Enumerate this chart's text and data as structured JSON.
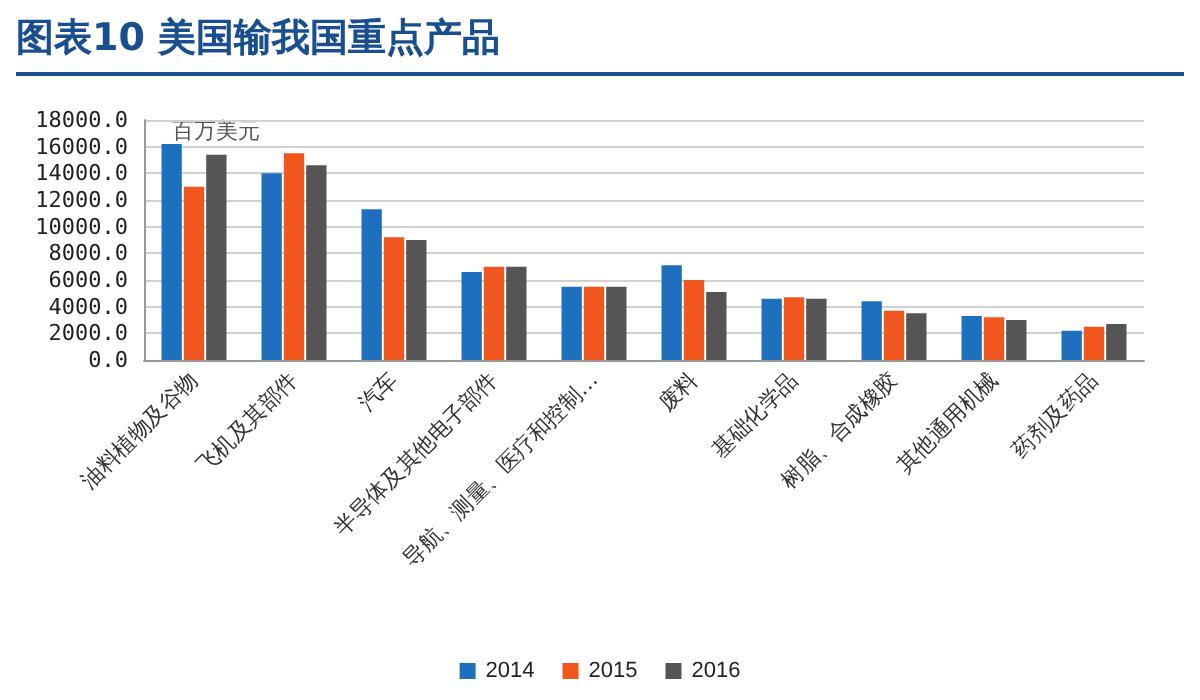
{
  "chart_data": {
    "type": "bar",
    "title": "图表10 美国输我国重点产品",
    "ylabel": "百万美元",
    "categories": [
      "油料植物及谷物",
      "飞机及其部件",
      "汽车",
      "半导体及其他电子部件",
      "导航、测量、医疗和控制…",
      "废料",
      "基础化学品",
      "树脂、合成橡胶",
      "其他通用机械",
      "药剂及药品"
    ],
    "series": [
      {
        "name": "2014",
        "color": "#1f6fbf",
        "values": [
          16200,
          14000,
          11300,
          6600,
          5500,
          7100,
          4600,
          4400,
          3300,
          2200
        ]
      },
      {
        "name": "2015",
        "color": "#f0561d",
        "values": [
          13000,
          15500,
          9200,
          7000,
          5500,
          6000,
          4700,
          3700,
          3200,
          2500
        ]
      },
      {
        "name": "2016",
        "color": "#555555",
        "values": [
          15400,
          14600,
          9000,
          7000,
          5500,
          5100,
          4600,
          3500,
          3000,
          2700
        ]
      }
    ],
    "ylim": [
      0,
      18000
    ],
    "yticks": [
      {
        "value": 0,
        "label": "0.0"
      },
      {
        "value": 2000,
        "label": "2000.0"
      },
      {
        "value": 4000,
        "label": "4000.0"
      },
      {
        "value": 6000,
        "label": "6000.0"
      },
      {
        "value": 8000,
        "label": "8000.0"
      },
      {
        "value": 10000,
        "label": "10000.0"
      },
      {
        "value": 12000,
        "label": "12000.0"
      },
      {
        "value": 14000,
        "label": "14000.0"
      },
      {
        "value": 16000,
        "label": "16000.0"
      },
      {
        "value": 18000,
        "label": "18000.0"
      }
    ],
    "grid": "y",
    "legend": "bottom"
  }
}
